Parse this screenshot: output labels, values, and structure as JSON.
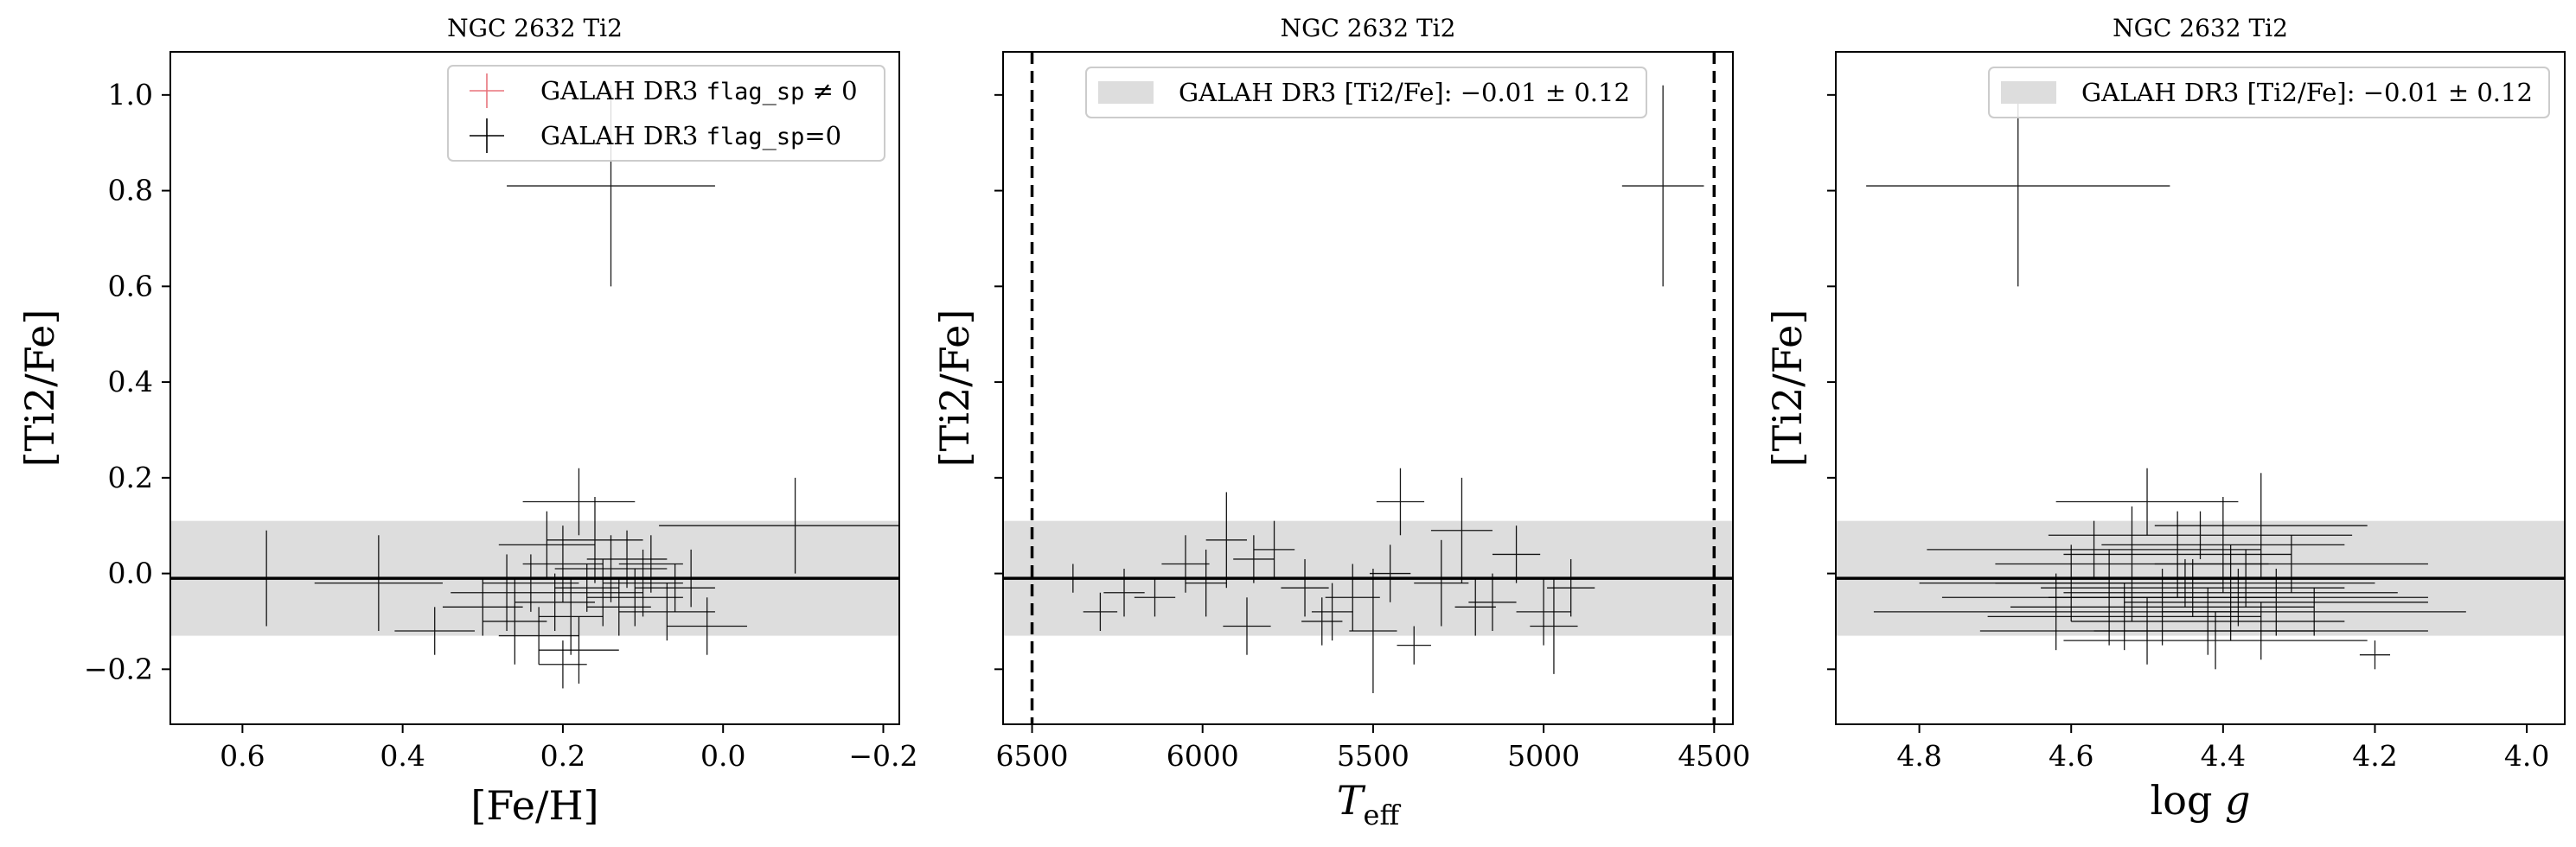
{
  "chart_data": [
    {
      "type": "scatter",
      "title": "NGC 2632 Ti2",
      "xlabel": "[Fe/H]",
      "ylabel": "[Ti2/Fe]",
      "xlim": [
        0.69,
        -0.22
      ],
      "ylim": [
        -0.315,
        1.09
      ],
      "xticks": [
        0.6,
        0.4,
        0.2,
        0.0,
        -0.2
      ],
      "xtick_labels": [
        "0.6",
        "0.4",
        "0.2",
        "0.0",
        "−0.2"
      ],
      "yticks": [
        -0.2,
        0.0,
        0.2,
        0.4,
        0.6,
        0.8,
        1.0
      ],
      "ytick_labels": [
        "−0.2",
        "0.0",
        "0.2",
        "0.4",
        "0.6",
        "0.8",
        "1.0"
      ],
      "band": {
        "center": -0.01,
        "sigma": 0.12
      },
      "legend": {
        "placement": "top-right",
        "entries": [
          {
            "pre": "GALAH DR3 ",
            "code": "flag_sp",
            "post": " ≠ 0",
            "color": "#e8737b"
          },
          {
            "pre": "GALAH DR3 ",
            "code": "flag_sp",
            "post": "=0",
            "color": "#000000"
          }
        ]
      },
      "points": [
        {
          "x": 0.14,
          "y": 0.81,
          "xerr": 0.13,
          "yerr": 0.21
        },
        {
          "x": -0.09,
          "y": 0.1,
          "xerr": 0.17,
          "yerr": 0.1
        },
        {
          "x": 0.57,
          "y": -0.01,
          "xerr": 0.07,
          "yerr": 0.1
        },
        {
          "x": 0.43,
          "y": -0.02,
          "xerr": 0.08,
          "yerr": 0.1
        },
        {
          "x": 0.36,
          "y": -0.12,
          "xerr": 0.05,
          "yerr": 0.05
        },
        {
          "x": 0.3,
          "y": -0.07,
          "xerr": 0.05,
          "yerr": 0.06
        },
        {
          "x": 0.27,
          "y": -0.04,
          "xerr": 0.07,
          "yerr": 0.08
        },
        {
          "x": 0.26,
          "y": -0.1,
          "xerr": 0.04,
          "yerr": 0.09
        },
        {
          "x": 0.24,
          "y": -0.02,
          "xerr": 0.06,
          "yerr": 0.06
        },
        {
          "x": 0.22,
          "y": 0.06,
          "xerr": 0.06,
          "yerr": 0.07
        },
        {
          "x": 0.21,
          "y": -0.06,
          "xerr": 0.05,
          "yerr": 0.06
        },
        {
          "x": 0.2,
          "y": 0.02,
          "xerr": 0.05,
          "yerr": 0.08
        },
        {
          "x": 0.19,
          "y": -0.09,
          "xerr": 0.04,
          "yerr": 0.08
        },
        {
          "x": 0.18,
          "y": -0.16,
          "xerr": 0.05,
          "yerr": 0.07
        },
        {
          "x": 0.17,
          "y": -0.03,
          "xerr": 0.04,
          "yerr": 0.05
        },
        {
          "x": 0.16,
          "y": 0.07,
          "xerr": 0.06,
          "yerr": 0.09
        },
        {
          "x": 0.15,
          "y": -0.04,
          "xerr": 0.05,
          "yerr": 0.07
        },
        {
          "x": 0.14,
          "y": 0.01,
          "xerr": 0.07,
          "yerr": 0.07
        },
        {
          "x": 0.13,
          "y": -0.07,
          "xerr": 0.04,
          "yerr": 0.06
        },
        {
          "x": 0.12,
          "y": 0.03,
          "xerr": 0.05,
          "yerr": 0.06
        },
        {
          "x": 0.11,
          "y": -0.05,
          "xerr": 0.06,
          "yerr": 0.06
        },
        {
          "x": 0.1,
          "y": -0.02,
          "xerr": 0.05,
          "yerr": 0.07
        },
        {
          "x": 0.09,
          "y": 0.02,
          "xerr": 0.04,
          "yerr": 0.06
        },
        {
          "x": 0.07,
          "y": -0.08,
          "xerr": 0.06,
          "yerr": 0.06
        },
        {
          "x": 0.06,
          "y": -0.03,
          "xerr": 0.05,
          "yerr": 0.05
        },
        {
          "x": 0.04,
          "y": -0.01,
          "xerr": 0.05,
          "yerr": 0.06
        },
        {
          "x": 0.02,
          "y": -0.11,
          "xerr": 0.05,
          "yerr": 0.06
        },
        {
          "x": 0.18,
          "y": 0.15,
          "xerr": 0.07,
          "yerr": 0.07
        },
        {
          "x": 0.23,
          "y": -0.13,
          "xerr": 0.05,
          "yerr": 0.06
        },
        {
          "x": 0.2,
          "y": -0.19,
          "xerr": 0.03,
          "yerr": 0.05
        }
      ]
    },
    {
      "type": "scatter",
      "title": "NGC 2632 Ti2",
      "xlabel_main": "T",
      "xlabel_sub": "eff",
      "ylabel": "[Ti2/Fe]",
      "xlim": [
        6585,
        4445
      ],
      "ylim": [
        -0.315,
        1.09
      ],
      "xticks": [
        6500,
        6000,
        5500,
        5000,
        4500
      ],
      "xtick_labels": [
        "6500",
        "6000",
        "5500",
        "5000",
        "4500"
      ],
      "yticks": [
        -0.2,
        0.0,
        0.2,
        0.4,
        0.6,
        0.8,
        1.0
      ],
      "vlines": [
        6500,
        4500
      ],
      "band": {
        "center": -0.01,
        "sigma": 0.12
      },
      "legend": {
        "placement": "top-center",
        "entries": [
          {
            "text": "GALAH DR3 [Ti2/Fe]: −0.01 ± 0.12",
            "color": "#dddddd"
          }
        ]
      },
      "points": [
        {
          "x": 4650,
          "y": 0.81,
          "xerr": 120,
          "yerr": 0.21
        },
        {
          "x": 6380,
          "y": -0.01,
          "xerr": 60,
          "yerr": 0.03
        },
        {
          "x": 6300,
          "y": -0.08,
          "xerr": 50,
          "yerr": 0.04
        },
        {
          "x": 6230,
          "y": -0.04,
          "xerr": 60,
          "yerr": 0.05
        },
        {
          "x": 6140,
          "y": -0.05,
          "xerr": 60,
          "yerr": 0.04
        },
        {
          "x": 6050,
          "y": 0.02,
          "xerr": 70,
          "yerr": 0.06
        },
        {
          "x": 5990,
          "y": -0.02,
          "xerr": 60,
          "yerr": 0.07
        },
        {
          "x": 5930,
          "y": 0.07,
          "xerr": 60,
          "yerr": 0.1
        },
        {
          "x": 5870,
          "y": -0.11,
          "xerr": 70,
          "yerr": 0.06
        },
        {
          "x": 5790,
          "y": 0.05,
          "xerr": 60,
          "yerr": 0.06
        },
        {
          "x": 5700,
          "y": -0.03,
          "xerr": 70,
          "yerr": 0.06
        },
        {
          "x": 5620,
          "y": -0.08,
          "xerr": 60,
          "yerr": 0.06
        },
        {
          "x": 5560,
          "y": -0.05,
          "xerr": 80,
          "yerr": 0.07
        },
        {
          "x": 5500,
          "y": -0.12,
          "xerr": 70,
          "yerr": 0.13
        },
        {
          "x": 5450,
          "y": 0.0,
          "xerr": 60,
          "yerr": 0.06
        },
        {
          "x": 5420,
          "y": 0.15,
          "xerr": 70,
          "yerr": 0.07
        },
        {
          "x": 5380,
          "y": -0.15,
          "xerr": 50,
          "yerr": 0.04
        },
        {
          "x": 5300,
          "y": -0.02,
          "xerr": 80,
          "yerr": 0.09
        },
        {
          "x": 5240,
          "y": 0.09,
          "xerr": 90,
          "yerr": 0.11
        },
        {
          "x": 5150,
          "y": -0.06,
          "xerr": 70,
          "yerr": 0.06
        },
        {
          "x": 5080,
          "y": 0.04,
          "xerr": 70,
          "yerr": 0.06
        },
        {
          "x": 5000,
          "y": -0.08,
          "xerr": 80,
          "yerr": 0.07
        },
        {
          "x": 4970,
          "y": -0.11,
          "xerr": 70,
          "yerr": 0.1
        },
        {
          "x": 4920,
          "y": -0.03,
          "xerr": 70,
          "yerr": 0.06
        },
        {
          "x": 5850,
          "y": 0.03,
          "xerr": 60,
          "yerr": 0.05
        },
        {
          "x": 5650,
          "y": -0.1,
          "xerr": 60,
          "yerr": 0.05
        },
        {
          "x": 5200,
          "y": -0.07,
          "xerr": 60,
          "yerr": 0.06
        }
      ]
    },
    {
      "type": "scatter",
      "title": "NGC 2632 Ti2",
      "xlabel_main": "log",
      "xlabel_italic": "g",
      "ylabel": "[Ti2/Fe]",
      "xlim": [
        4.91,
        3.95
      ],
      "ylim": [
        -0.315,
        1.09
      ],
      "xticks": [
        4.8,
        4.6,
        4.4,
        4.2,
        4.0
      ],
      "xtick_labels": [
        "4.8",
        "4.6",
        "4.4",
        "4.2",
        "4.0"
      ],
      "yticks": [
        -0.2,
        0.0,
        0.2,
        0.4,
        0.6,
        0.8,
        1.0
      ],
      "band": {
        "center": -0.01,
        "sigma": 0.12
      },
      "legend": {
        "placement": "top-right",
        "entries": [
          {
            "text": "GALAH DR3 [Ti2/Fe]: −0.01 ± 0.12",
            "color": "#dddddd"
          }
        ]
      },
      "points": [
        {
          "x": 4.67,
          "y": 0.81,
          "xerr": 0.2,
          "yerr": 0.21
        },
        {
          "x": 4.6,
          "y": -0.02,
          "xerr": 0.2,
          "yerr": 0.08
        },
        {
          "x": 4.55,
          "y": -0.05,
          "xerr": 0.22,
          "yerr": 0.1
        },
        {
          "x": 4.52,
          "y": 0.02,
          "xerr": 0.18,
          "yerr": 0.12
        },
        {
          "x": 4.5,
          "y": 0.15,
          "xerr": 0.12,
          "yerr": 0.07
        },
        {
          "x": 4.48,
          "y": -0.07,
          "xerr": 0.2,
          "yerr": 0.08
        },
        {
          "x": 4.46,
          "y": 0.04,
          "xerr": 0.15,
          "yerr": 0.09
        },
        {
          "x": 4.44,
          "y": -0.03,
          "xerr": 0.2,
          "yerr": 0.06
        },
        {
          "x": 4.42,
          "y": -0.1,
          "xerr": 0.18,
          "yerr": 0.07
        },
        {
          "x": 4.4,
          "y": 0.06,
          "xerr": 0.16,
          "yerr": 0.1
        },
        {
          "x": 4.39,
          "y": -0.04,
          "xerr": 0.22,
          "yerr": 0.1
        },
        {
          "x": 4.37,
          "y": -0.01,
          "xerr": 0.2,
          "yerr": 0.06
        },
        {
          "x": 4.35,
          "y": 0.1,
          "xerr": 0.14,
          "yerr": 0.11
        },
        {
          "x": 4.33,
          "y": -0.06,
          "xerr": 0.2,
          "yerr": 0.07
        },
        {
          "x": 4.31,
          "y": 0.02,
          "xerr": 0.18,
          "yerr": 0.06
        },
        {
          "x": 4.28,
          "y": -0.08,
          "xerr": 0.2,
          "yerr": 0.05
        },
        {
          "x": 4.5,
          "y": -0.12,
          "xerr": 0.22,
          "yerr": 0.07
        },
        {
          "x": 4.57,
          "y": 0.05,
          "xerr": 0.22,
          "yerr": 0.06
        },
        {
          "x": 4.45,
          "y": -0.02,
          "xerr": 0.25,
          "yerr": 0.05
        },
        {
          "x": 4.38,
          "y": -0.05,
          "xerr": 0.25,
          "yerr": 0.06
        },
        {
          "x": 4.53,
          "y": -0.09,
          "xerr": 0.18,
          "yerr": 0.07
        },
        {
          "x": 4.41,
          "y": -0.14,
          "xerr": 0.2,
          "yerr": 0.06
        },
        {
          "x": 4.62,
          "y": -0.08,
          "xerr": 0.24,
          "yerr": 0.08
        },
        {
          "x": 4.2,
          "y": -0.17,
          "xerr": 0.02,
          "yerr": 0.03
        },
        {
          "x": 4.43,
          "y": 0.08,
          "xerr": 0.2,
          "yerr": 0.05
        },
        {
          "x": 4.35,
          "y": -0.12,
          "xerr": 0.22,
          "yerr": 0.06
        }
      ]
    }
  ]
}
